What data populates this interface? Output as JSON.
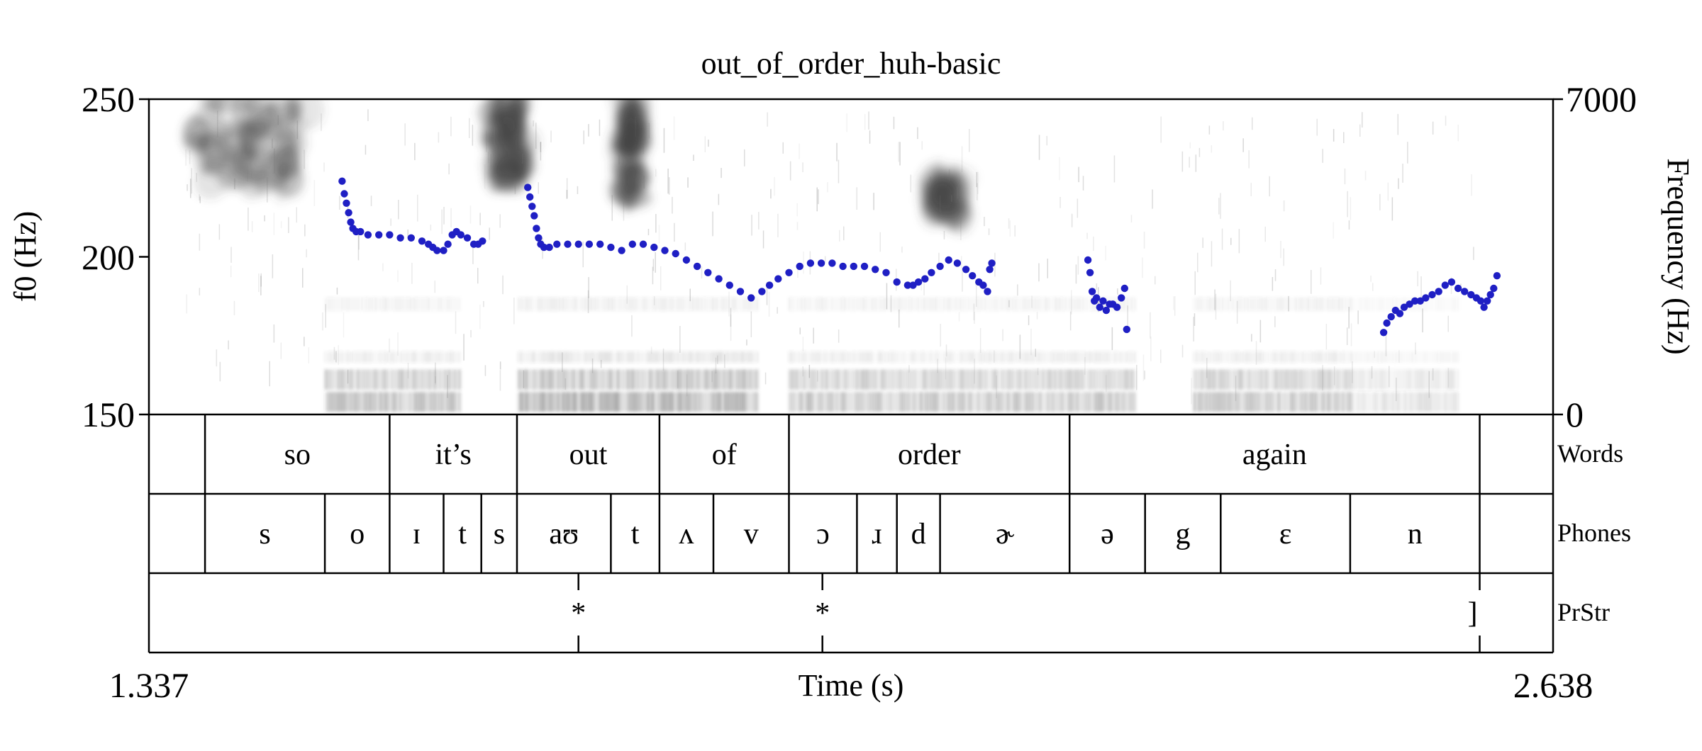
{
  "chart_data": {
    "type": "scatter",
    "title": "out_of_order_huh-basic",
    "xlabel": "Time (s)",
    "ylabel_left": "f0 (Hz)",
    "ylabel_right": "Frequency (Hz)",
    "xlim": [
      1.337,
      2.638
    ],
    "ylim_left": [
      150,
      250
    ],
    "ylim_right": [
      0,
      7000
    ],
    "x_ticks": [
      "1.337",
      "2.638"
    ],
    "y_ticks_left": [
      "250",
      "200",
      "150"
    ],
    "y_ticks_right": [
      "7000",
      "0"
    ],
    "grid": false,
    "colors": {
      "f0": "#1f1fc4",
      "spectrogram": "#4a4a4a"
    },
    "f0_segments": [
      {
        "x": [
          1.516,
          1.518,
          1.52,
          1.522,
          1.524,
          1.526,
          1.529,
          1.533,
          1.54,
          1.55,
          1.56,
          1.57,
          1.58,
          1.59,
          1.596,
          1.6,
          1.604,
          1.61,
          1.614,
          1.618,
          1.622,
          1.626,
          1.632,
          1.638,
          1.642,
          1.646
        ],
        "y": [
          224,
          220,
          217,
          214,
          211,
          209,
          208,
          208,
          207,
          207,
          207,
          206,
          206,
          205,
          204,
          203,
          202,
          202,
          204,
          207,
          208,
          207,
          206,
          204,
          204,
          205
        ]
      },
      {
        "x": [
          1.688,
          1.69,
          1.692,
          1.694,
          1.696,
          1.698,
          1.7,
          1.703,
          1.708,
          1.715,
          1.725,
          1.735,
          1.745,
          1.755,
          1.765,
          1.775,
          1.785,
          1.795,
          1.805,
          1.815,
          1.825,
          1.835,
          1.845,
          1.855,
          1.865,
          1.875,
          1.885,
          1.895,
          1.905,
          1.912,
          1.92,
          1.93,
          1.94,
          1.95,
          1.96,
          1.97,
          1.98,
          1.99,
          2.0,
          2.01,
          2.02,
          2.03,
          2.04,
          2.045,
          2.05,
          2.056,
          2.062,
          2.07,
          2.078,
          2.086,
          2.094,
          2.1,
          2.106,
          2.11,
          2.114
        ],
        "y": [
          222,
          219,
          216,
          213,
          209,
          206,
          204,
          203,
          203,
          204,
          204,
          204,
          204,
          204,
          203,
          202,
          204,
          204,
          203,
          202,
          201,
          199,
          197,
          195,
          193,
          191,
          189,
          187,
          189,
          191,
          193,
          195,
          197,
          198,
          198,
          198,
          197,
          197,
          197,
          196,
          195,
          192,
          191,
          191,
          192,
          193,
          195,
          197,
          199,
          198,
          196,
          194,
          192,
          191,
          189
        ]
      },
      {
        "x": [
          2.116,
          2.118
        ],
        "y": [
          196,
          198
        ]
      },
      {
        "x": [
          2.207,
          2.209,
          2.211,
          2.213,
          2.215,
          2.218,
          2.221,
          2.224,
          2.227,
          2.23,
          2.234,
          2.238,
          2.241,
          2.243
        ],
        "y": [
          199,
          195,
          189,
          186,
          187,
          184,
          186,
          183,
          185,
          185,
          184,
          187,
          190,
          177
        ]
      },
      {
        "x": [
          2.481,
          2.484,
          2.488,
          2.492,
          2.496,
          2.5,
          2.505,
          2.51,
          2.515,
          2.52,
          2.526,
          2.532,
          2.538,
          2.544,
          2.55,
          2.556,
          2.562,
          2.567,
          2.571,
          2.574,
          2.577,
          2.58,
          2.583,
          2.586
        ],
        "y": [
          176,
          179,
          181,
          183,
          182,
          184,
          185,
          186,
          186,
          187,
          188,
          189,
          191,
          192,
          190,
          189,
          188,
          187,
          186,
          184,
          186,
          188,
          190,
          194
        ]
      }
    ],
    "tiers": [
      {
        "name": "Words",
        "intervals": [
          {
            "label": "",
            "start": 1.337,
            "end": 1.389
          },
          {
            "label": "so",
            "start": 1.389,
            "end": 1.56
          },
          {
            "label": "it’s",
            "start": 1.56,
            "end": 1.678
          },
          {
            "label": "out",
            "start": 1.678,
            "end": 1.81
          },
          {
            "label": "of",
            "start": 1.81,
            "end": 1.93
          },
          {
            "label": "order",
            "start": 1.93,
            "end": 2.19
          },
          {
            "label": "again",
            "start": 2.19,
            "end": 2.57
          },
          {
            "label": "",
            "start": 2.57,
            "end": 2.638
          }
        ]
      },
      {
        "name": "Phones",
        "intervals": [
          {
            "label": "",
            "start": 1.337,
            "end": 1.389
          },
          {
            "label": "s",
            "start": 1.389,
            "end": 1.5
          },
          {
            "label": "o",
            "start": 1.5,
            "end": 1.56
          },
          {
            "label": "ɪ",
            "start": 1.56,
            "end": 1.61
          },
          {
            "label": "t",
            "start": 1.61,
            "end": 1.645
          },
          {
            "label": "s",
            "start": 1.645,
            "end": 1.678
          },
          {
            "label": "aʊ",
            "start": 1.678,
            "end": 1.765
          },
          {
            "label": "t",
            "start": 1.765,
            "end": 1.81
          },
          {
            "label": "ʌ",
            "start": 1.81,
            "end": 1.86
          },
          {
            "label": "v",
            "start": 1.86,
            "end": 1.93
          },
          {
            "label": "ɔ",
            "start": 1.93,
            "end": 1.993
          },
          {
            "label": "ɹ",
            "start": 1.993,
            "end": 2.03
          },
          {
            "label": "d",
            "start": 2.03,
            "end": 2.07
          },
          {
            "label": "ɚ",
            "start": 2.07,
            "end": 2.19
          },
          {
            "label": "ə",
            "start": 2.19,
            "end": 2.26
          },
          {
            "label": "g",
            "start": 2.26,
            "end": 2.33
          },
          {
            "label": "ɛ",
            "start": 2.33,
            "end": 2.45
          },
          {
            "label": "n",
            "start": 2.45,
            "end": 2.57
          },
          {
            "label": "",
            "start": 2.57,
            "end": 2.638
          }
        ]
      },
      {
        "name": "PrStr",
        "points": [
          {
            "label": "*",
            "time": 1.735
          },
          {
            "label": "*",
            "time": 1.961
          },
          {
            "label": "]",
            "time": 2.57
          }
        ]
      }
    ]
  }
}
